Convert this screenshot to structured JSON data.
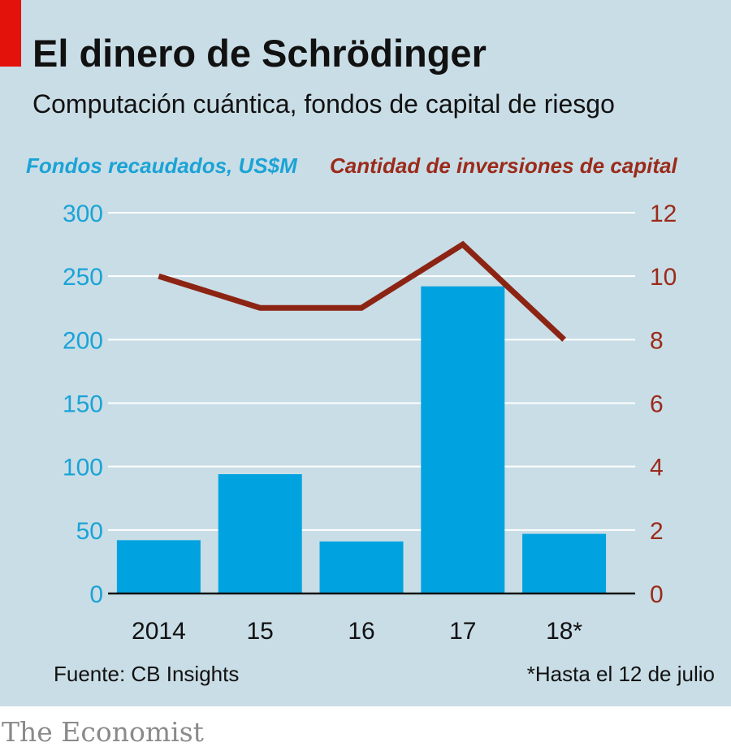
{
  "header": {
    "title": "El dinero de Schrödinger",
    "subtitle": "Computación cuántica, fondos de capital de riesgo"
  },
  "footer": {
    "source": "Fuente: CB Insights",
    "note": "*Hasta el 12 de julio",
    "brand": "The Economist"
  },
  "colors": {
    "background": "#c9dde6",
    "bars": "#00a3e0",
    "line": "#8c2414",
    "left_axis": "#1ba3d6",
    "right_axis": "#9b2a1a",
    "accent": "#e3120b"
  },
  "chart_data": {
    "type": "bar",
    "categories": [
      "2014",
      "15",
      "16",
      "17",
      "18*"
    ],
    "series": [
      {
        "name": "Fondos recaudados, US$M",
        "type": "bar",
        "axis": "left",
        "values": [
          42,
          94,
          41,
          242,
          47
        ]
      },
      {
        "name": "Cantidad de inversiones de capital",
        "type": "line",
        "axis": "right",
        "values": [
          10,
          9,
          9,
          11,
          8
        ]
      }
    ],
    "y_left": {
      "label": "Fondos recaudados, US$M",
      "ylim": [
        0,
        300
      ],
      "ticks": [
        "0",
        "50",
        "100",
        "150",
        "200",
        "250",
        "300"
      ]
    },
    "y_right": {
      "label": "Cantidad de inversiones de capital",
      "ylim": [
        0,
        12
      ],
      "ticks": [
        "0",
        "2",
        "4",
        "6",
        "8",
        "10",
        "12"
      ]
    },
    "grid": true
  }
}
